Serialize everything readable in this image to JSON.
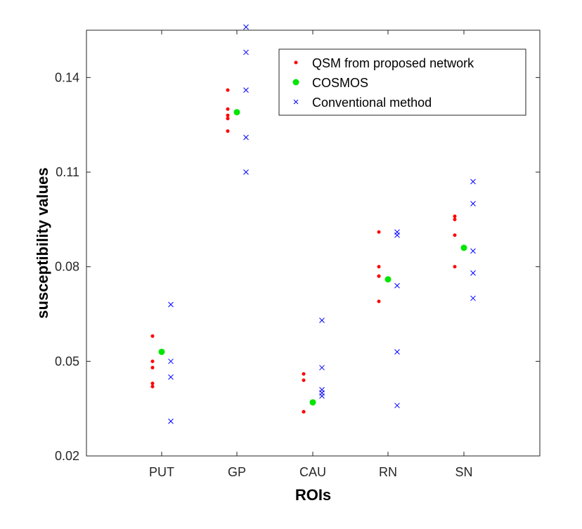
{
  "chart_data": {
    "type": "scatter",
    "title": "",
    "xlabel": "ROIs",
    "ylabel": "susceptibility values",
    "categories": [
      "PUT",
      "GP",
      "CAU",
      "RN",
      "SN"
    ],
    "ylim": [
      0.02,
      0.155
    ],
    "yticks": [
      0.02,
      0.05,
      0.08,
      0.11,
      0.14
    ],
    "ytick_labels": [
      "0.02",
      "0.05",
      "0.08",
      "0.11",
      "0.14"
    ],
    "grid": false,
    "legend_position": "top-right",
    "series": [
      {
        "name": "QSM from proposed network",
        "marker": "dot",
        "color": "#ff0000",
        "points": [
          [
            0.058,
            0.05,
            0.048,
            0.043,
            0.042
          ],
          [
            0.136,
            0.13,
            0.128,
            0.127,
            0.123
          ],
          [
            0.046,
            0.044,
            0.034,
            0.034
          ],
          [
            0.091,
            0.08,
            0.077,
            0.077,
            0.069
          ],
          [
            0.096,
            0.095,
            0.09,
            0.08
          ]
        ]
      },
      {
        "name": "COSMOS",
        "marker": "filled-circle",
        "color": "#00e600",
        "points": [
          [
            0.053
          ],
          [
            0.129
          ],
          [
            0.037
          ],
          [
            0.076
          ],
          [
            0.086
          ]
        ]
      },
      {
        "name": "Conventional method",
        "marker": "x",
        "color": "#0000ff",
        "points": [
          [
            0.068,
            0.05,
            0.045,
            0.031
          ],
          [
            0.156,
            0.148,
            0.136,
            0.121,
            0.11
          ],
          [
            0.063,
            0.048,
            0.041,
            0.04,
            0.039
          ],
          [
            0.091,
            0.09,
            0.074,
            0.053,
            0.036
          ],
          [
            0.107,
            0.1,
            0.085,
            0.078,
            0.07
          ]
        ]
      }
    ]
  }
}
